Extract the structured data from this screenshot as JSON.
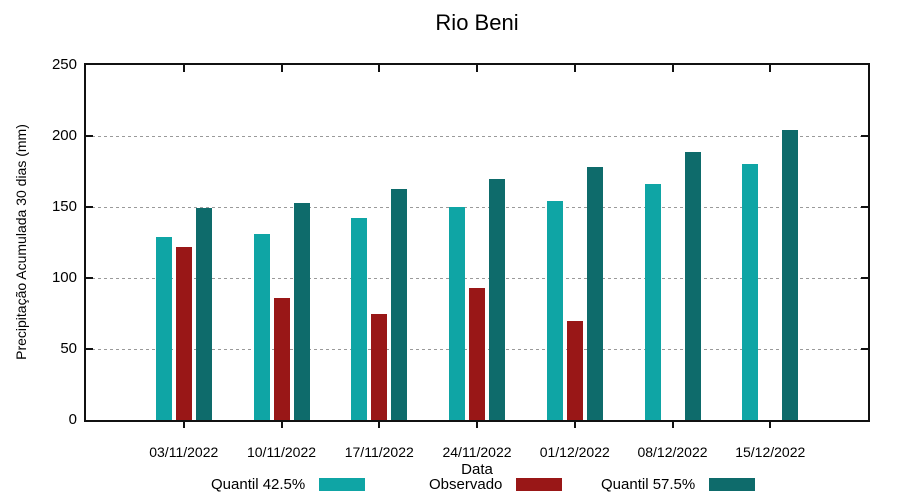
{
  "title": "Rio Beni",
  "chart_data": {
    "type": "bar",
    "title": "Rio Beni",
    "xlabel": "Data",
    "ylabel": "Precipitação Acumulada 30 dias (mm)",
    "ylim": [
      0,
      250
    ],
    "yticks": [
      0,
      50,
      100,
      150,
      200,
      250
    ],
    "grid": "horizontal dashed lines at 50, 100, 150, 200",
    "grid_color": "#9a9a9a",
    "axis_color": "#111111",
    "legend_position": "bottom",
    "categories": [
      "03/11/2022",
      "10/11/2022",
      "17/11/2022",
      "24/11/2022",
      "01/12/2022",
      "08/12/2022",
      "15/12/2022"
    ],
    "series": [
      {
        "name": "Quantil 42.5%",
        "color": "#0FA5A5",
        "values": [
          129,
          131,
          142,
          150,
          154,
          166,
          180
        ]
      },
      {
        "name": "Observado",
        "color": "#991717",
        "values": [
          122,
          86,
          75,
          93,
          70,
          null,
          null
        ]
      },
      {
        "name": "Quantil 57.5%",
        "color": "#0E6B6B",
        "values": [
          149,
          153,
          163,
          170,
          178,
          189,
          204
        ]
      }
    ]
  }
}
